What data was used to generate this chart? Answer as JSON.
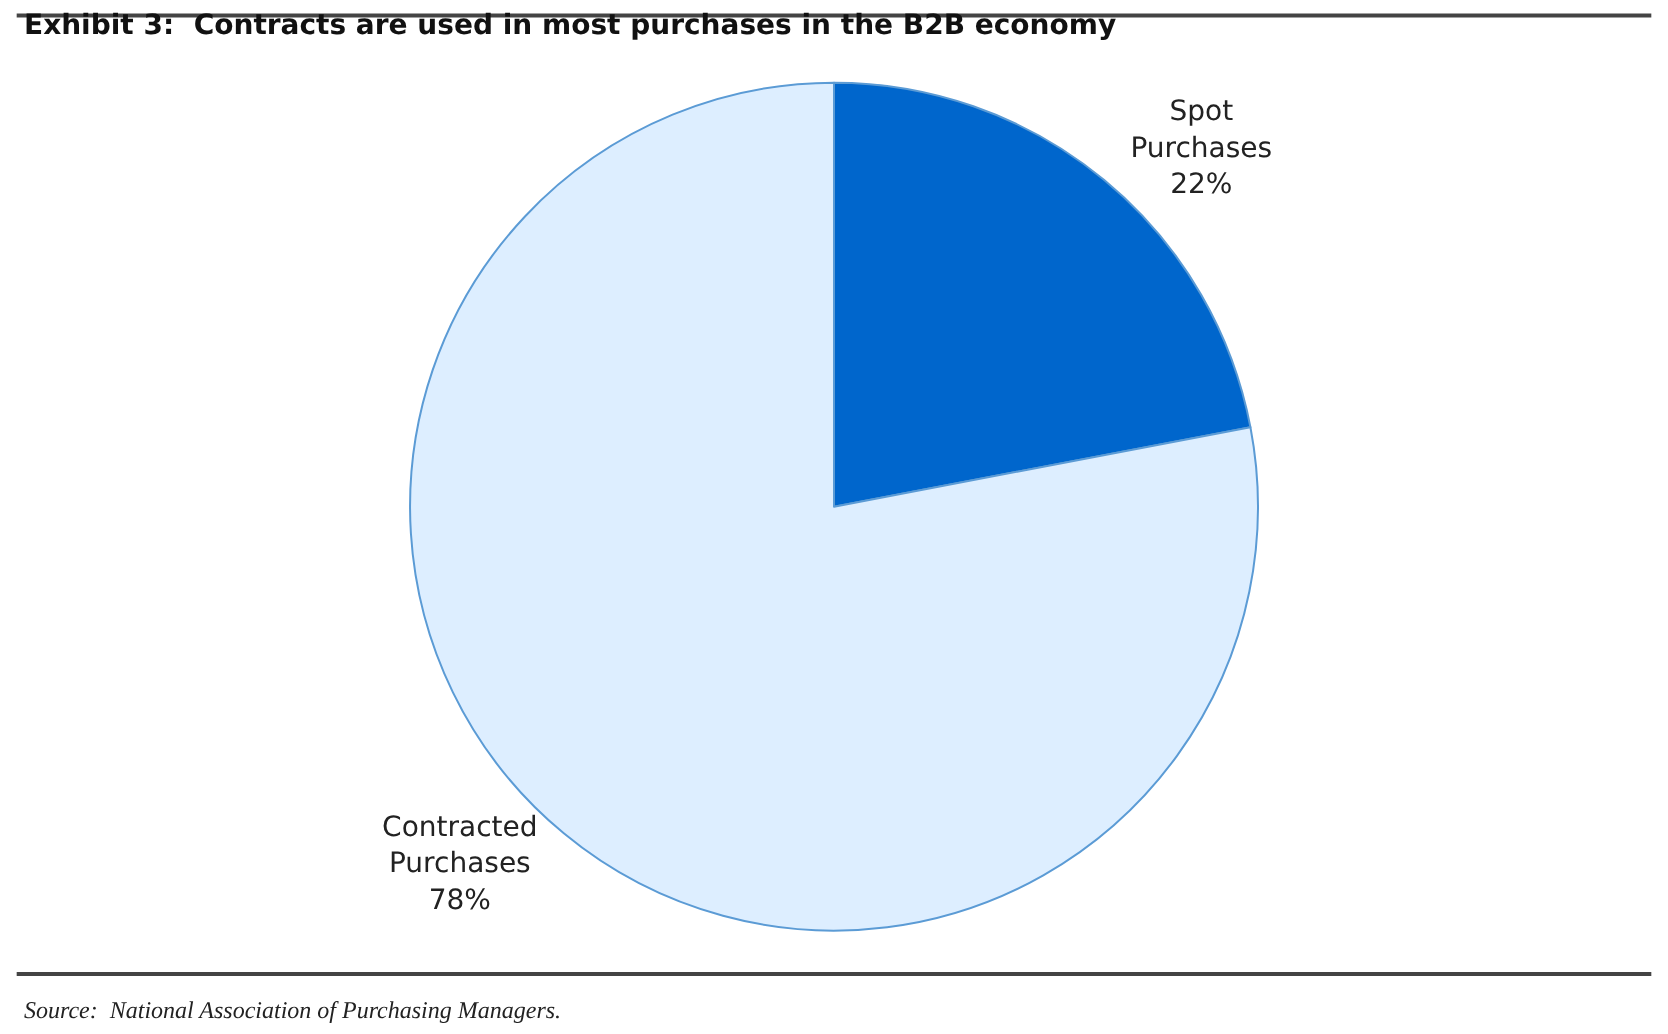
{
  "chart_data": {
    "type": "pie",
    "title": "Exhibit 3:  Contracts are used in most purchases in the B2B economy",
    "categories": [
      "Spot Purchases",
      "Contracted Purchases"
    ],
    "values": [
      22,
      78
    ],
    "value_labels": [
      "22%",
      "78%"
    ],
    "colors": [
      "#0066cc",
      "#ddeeff"
    ],
    "legend": false,
    "annotations": [
      "Source:  National Association of Purchasing Managers."
    ]
  }
}
